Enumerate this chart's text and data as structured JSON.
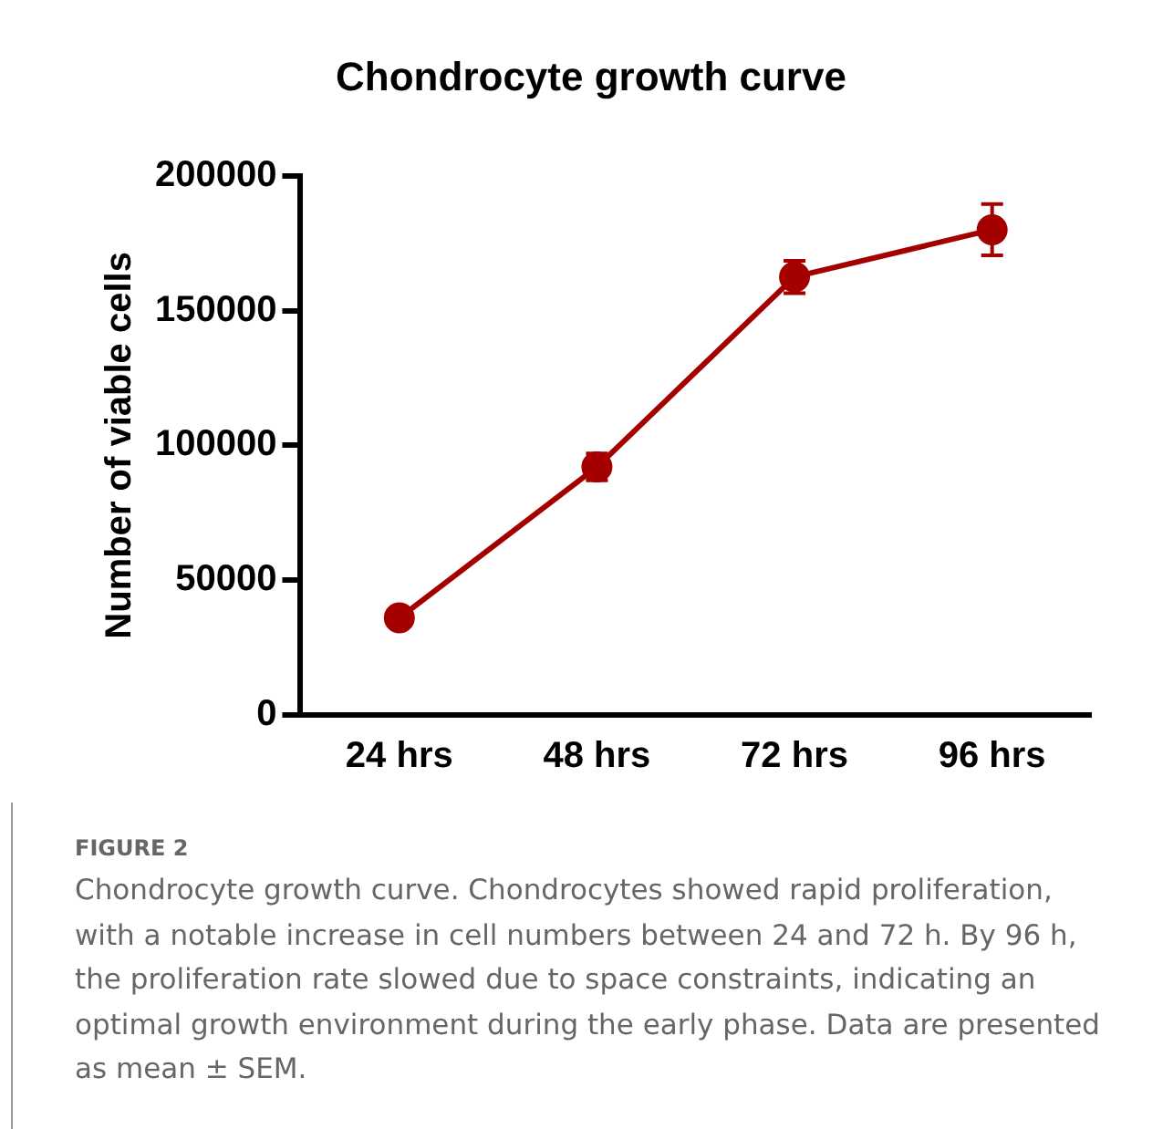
{
  "chart_data": {
    "type": "line",
    "title": "Chondrocyte growth curve",
    "ylabel": "Number of viable cells",
    "categories": [
      "24 hrs",
      "48 hrs",
      "72 hrs",
      "96 hrs"
    ],
    "series": [
      {
        "color": "#a50000",
        "values": [
          36000,
          92000,
          162500,
          180000
        ],
        "errors": [
          null,
          5000,
          6000,
          9500
        ]
      }
    ],
    "ylim": [
      0,
      200000
    ],
    "yticks": [
      0,
      50000,
      100000,
      150000,
      200000
    ],
    "grid": false,
    "legend": false,
    "marker": "circle",
    "line_style": "solid",
    "annotations": [
      "FIGURE 2",
      "Chondrocyte growth curve. Chondrocytes showed rapid proliferation, with a notable increase in cell numbers between 24 and 72 h. By 96 h, the proliferation rate slowed due to space constraints, indicating an optimal growth environment during the early phase. Data are presented as mean ± SEM."
    ]
  }
}
